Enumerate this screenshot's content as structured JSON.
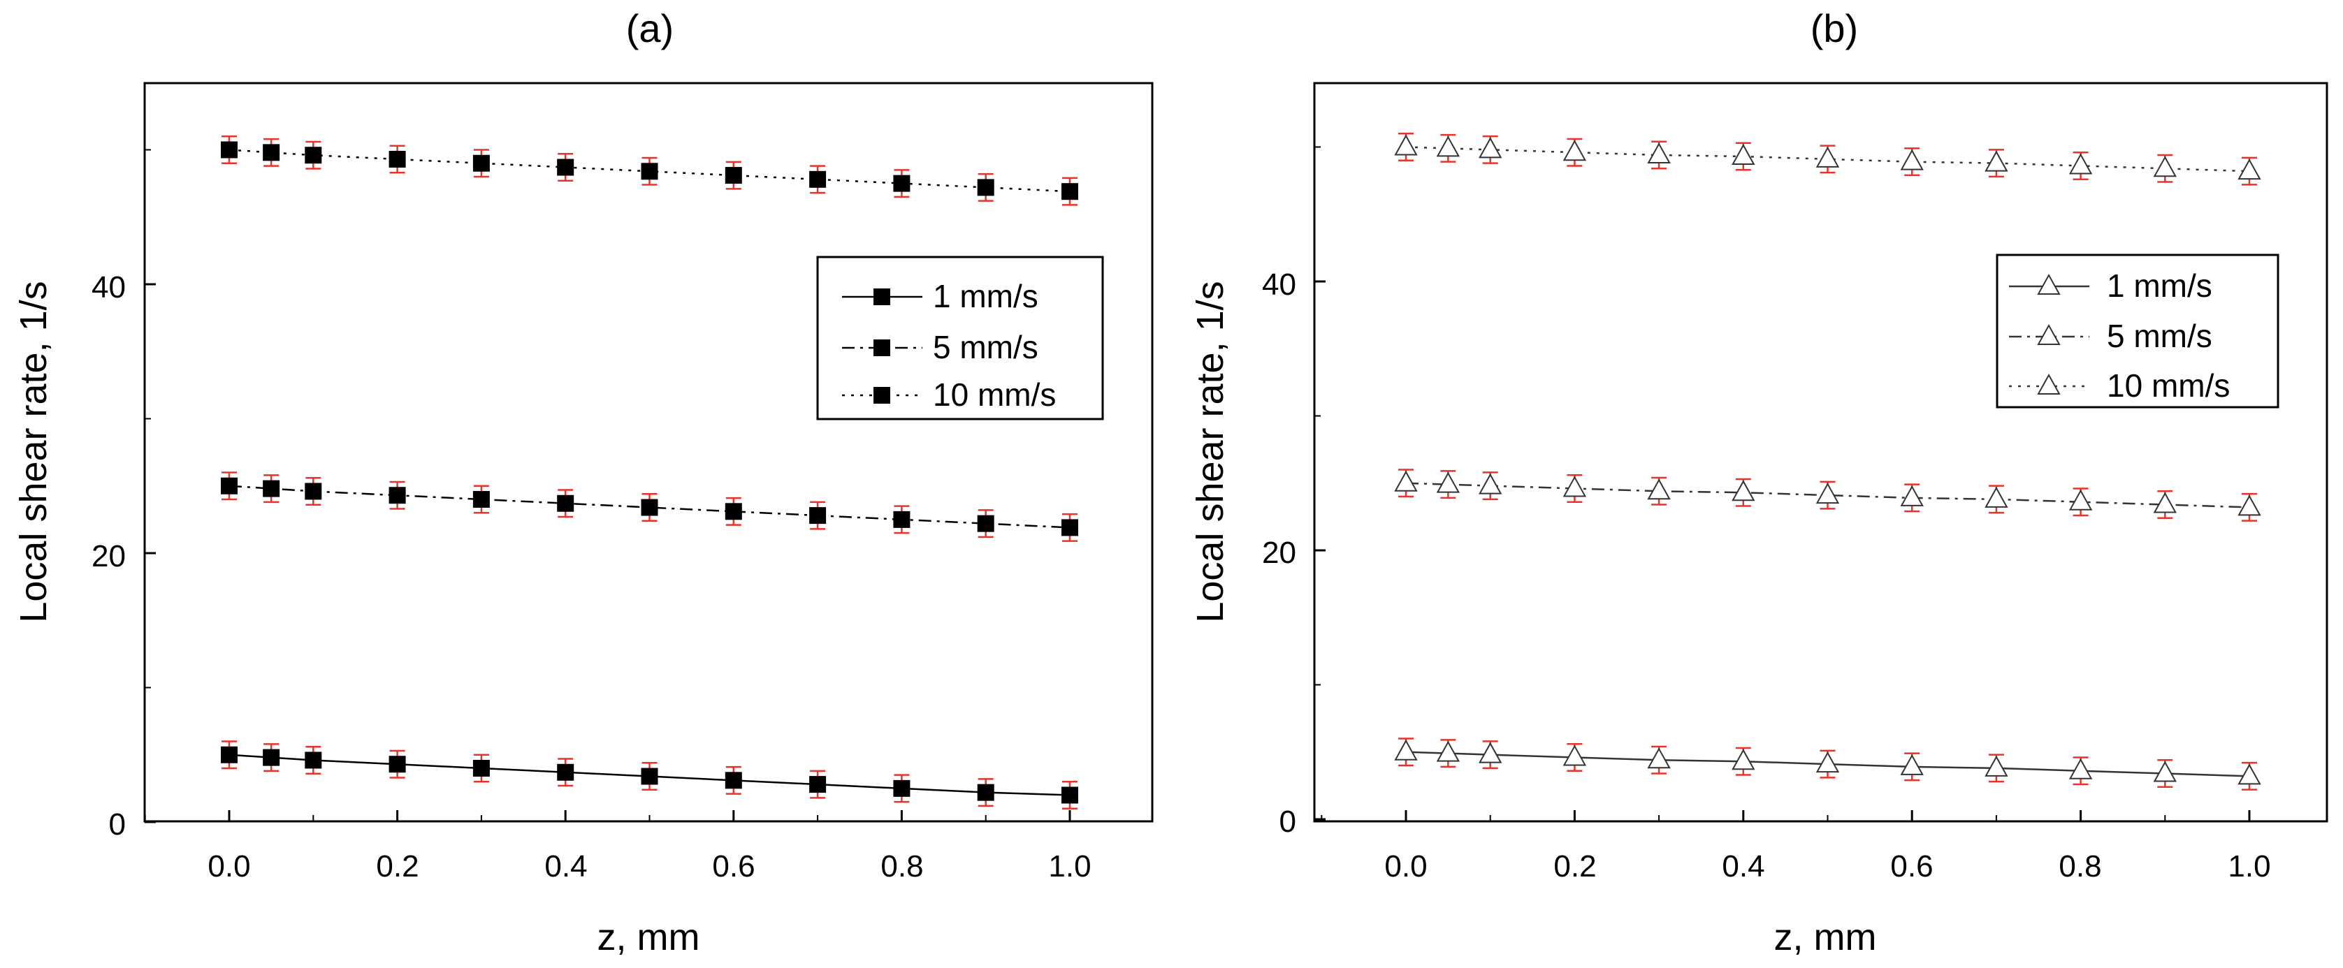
{
  "chart_data": [
    {
      "type": "line",
      "panel_label": "(a)",
      "xlabel": "z, mm",
      "ylabel": "Local shear rate, 1/s",
      "xlim": [
        -0.1,
        1.1
      ],
      "ylim": [
        0,
        55
      ],
      "x_ticks": [
        "0.0",
        "0.2",
        "0.4",
        "0.6",
        "0.8",
        "1.0"
      ],
      "y_ticks": [
        "0",
        "20",
        "40"
      ],
      "marker": "filled-square",
      "x": [
        0.0,
        0.05,
        0.1,
        0.2,
        0.3,
        0.4,
        0.5,
        0.6,
        0.7,
        0.8,
        0.9,
        1.0
      ],
      "error": 1.0,
      "series": [
        {
          "name": "1 mm/s",
          "line_style": "solid",
          "values": [
            5.0,
            4.8,
            4.6,
            4.3,
            4.0,
            3.7,
            3.4,
            3.1,
            2.8,
            2.5,
            2.2,
            2.0
          ]
        },
        {
          "name": "5 mm/s",
          "line_style": "dashdot",
          "values": [
            25.0,
            24.8,
            24.6,
            24.3,
            24.0,
            23.7,
            23.4,
            23.1,
            22.8,
            22.5,
            22.2,
            21.9
          ]
        },
        {
          "name": "10 mm/s",
          "line_style": "dotted",
          "values": [
            50.0,
            49.8,
            49.6,
            49.3,
            49.0,
            48.7,
            48.4,
            48.1,
            47.8,
            47.5,
            47.2,
            46.9
          ]
        }
      ],
      "legend_position": "right, upper-middle",
      "colors": {
        "axis": "#000000",
        "line": "#000000",
        "marker_fill": "#000000",
        "error_bar": "#e8332a"
      }
    },
    {
      "type": "line",
      "panel_label": "(b)",
      "xlabel": "z, mm",
      "ylabel": "Local shear rate, 1/s",
      "xlim": [
        -0.1,
        1.1
      ],
      "ylim": [
        0,
        55
      ],
      "x_ticks": [
        "0.0",
        "0.2",
        "0.4",
        "0.6",
        "0.8",
        "1.0"
      ],
      "y_ticks": [
        "0",
        "20",
        "40"
      ],
      "marker": "open-triangle",
      "x": [
        0.0,
        0.05,
        0.1,
        0.2,
        0.3,
        0.4,
        0.5,
        0.6,
        0.7,
        0.8,
        0.9,
        1.0
      ],
      "error": 1.0,
      "series": [
        {
          "name": "1 mm/s",
          "line_style": "solid",
          "values": [
            5.0,
            4.9,
            4.8,
            4.6,
            4.4,
            4.3,
            4.1,
            3.9,
            3.8,
            3.6,
            3.4,
            3.2
          ]
        },
        {
          "name": "5 mm/s",
          "line_style": "dashdot",
          "values": [
            25.0,
            24.9,
            24.8,
            24.6,
            24.4,
            24.3,
            24.1,
            23.9,
            23.8,
            23.6,
            23.4,
            23.2
          ]
        },
        {
          "name": "10 mm/s",
          "line_style": "dotted",
          "values": [
            50.0,
            49.9,
            49.8,
            49.6,
            49.4,
            49.3,
            49.1,
            48.9,
            48.8,
            48.6,
            48.4,
            48.2
          ]
        }
      ],
      "legend_position": "right, upper-middle",
      "colors": {
        "axis": "#000000",
        "line": "#333333",
        "marker_fill": "#ffffff",
        "error_bar": "#e8332a"
      }
    }
  ]
}
